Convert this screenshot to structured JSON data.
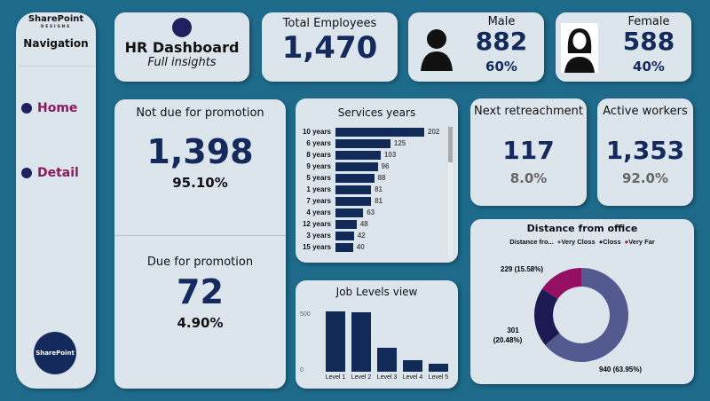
{
  "nav": {
    "logo": "SharePoint",
    "logo_sub": "DESIGNS",
    "title": "Navigation",
    "items": [
      {
        "label": "Home"
      },
      {
        "label": "Detail"
      }
    ],
    "badge": "SharePoint"
  },
  "header": {
    "title": "HR Dashboard",
    "subtitle": "Full insights"
  },
  "total": {
    "label": "Total Employees",
    "value": "1,470"
  },
  "male": {
    "label": "Male",
    "value": "882",
    "pct": "60%",
    "icon": "male-avatar-icon"
  },
  "female": {
    "label": "Female",
    "value": "588",
    "pct": "40%",
    "icon": "female-avatar-icon"
  },
  "not_due": {
    "label": "Not due for promotion",
    "value": "1,398",
    "pct": "95.10%"
  },
  "due": {
    "label": "Due for promotion",
    "value": "72",
    "pct": "4.90%"
  },
  "retreat": {
    "label": "Next retreachment",
    "value": "117",
    "pct": "8.0%"
  },
  "active": {
    "label": "Active workers",
    "value": "1,353",
    "pct": "92.0%"
  },
  "chart_data": [
    {
      "type": "bar",
      "orientation": "horizontal",
      "title": "Services years",
      "categories": [
        "10 years",
        "6 years",
        "8 years",
        "9 years",
        "5 years",
        "1 years",
        "7 years",
        "4 years",
        "12 years",
        "3 years",
        "15 years"
      ],
      "values": [
        202,
        125,
        103,
        96,
        88,
        81,
        81,
        63,
        48,
        42,
        40
      ]
    },
    {
      "type": "bar",
      "title": "Job Levels view",
      "categories": [
        "Level 1",
        "Level 2",
        "Level 3",
        "Level 4",
        "Level 5"
      ],
      "values": [
        543,
        534,
        218,
        106,
        69
      ],
      "yticks": [
        "0",
        "500"
      ],
      "ylim": [
        0,
        560
      ]
    },
    {
      "type": "pie",
      "donut": true,
      "title": "Distance from office",
      "legend_title": "Distance fro...",
      "legend_position": "top",
      "slices": [
        {
          "name": "Very Closs",
          "value": 940,
          "label": "940 (63.95%)",
          "color": "#525a8f"
        },
        {
          "name": "Closs",
          "value": 301,
          "label": "301 (20.48%)",
          "color": "#1c1a52"
        },
        {
          "name": "Very Far",
          "value": 229,
          "label": "229 (15.58%)",
          "color": "#950f62"
        }
      ]
    }
  ]
}
